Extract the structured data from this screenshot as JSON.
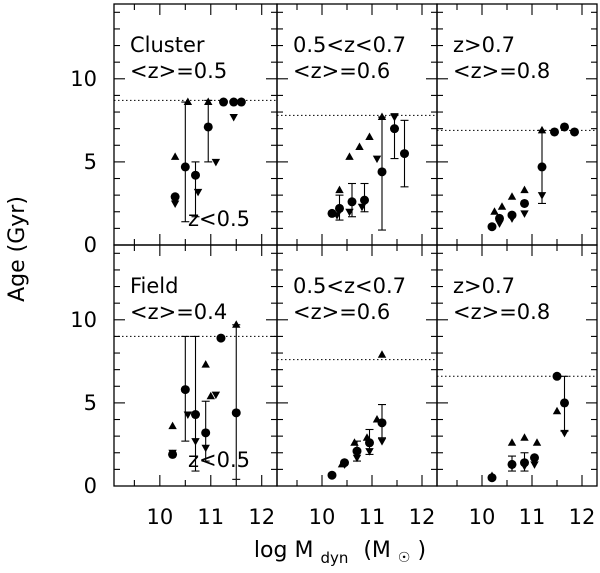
{
  "chart_data": {
    "type": "scatter",
    "xlabel_main": "log M",
    "xlabel_sub": "dyn",
    "xlabel_unit_open": "(M",
    "xlabel_unit_close": ")",
    "ylabel": "Age (Gyr)",
    "xlim": [
      9.1,
      12.3
    ],
    "ylim": [
      0,
      14.5
    ],
    "x_ticklabels": [
      "10",
      "11",
      "12"
    ],
    "y_ticklabels": [
      "0",
      "5",
      "10"
    ],
    "panels": [
      {
        "row": 0,
        "col": 0,
        "label": [
          "Cluster",
          "<z>=0.5"
        ],
        "note": "z<0.5",
        "ref_age": 8.7,
        "circles": [
          {
            "x": 10.3,
            "y": 2.9
          },
          {
            "x": 10.5,
            "y": 4.7,
            "lo": 1.4,
            "hi": 8.6
          },
          {
            "x": 10.7,
            "y": 4.2,
            "lo": 1.7,
            "hi": 5.0
          },
          {
            "x": 10.95,
            "y": 7.1,
            "lo": 5.0,
            "hi": 8.7
          },
          {
            "x": 11.25,
            "y": 8.6
          },
          {
            "x": 11.45,
            "y": 8.6
          },
          {
            "x": 11.6,
            "y": 8.6
          }
        ],
        "up": [
          {
            "x": 10.3,
            "y": 5.3
          },
          {
            "x": 10.55,
            "y": 8.6
          },
          {
            "x": 10.95,
            "y": 8.6
          }
        ],
        "down": [
          {
            "x": 10.3,
            "y": 2.5
          },
          {
            "x": 10.75,
            "y": 3.2
          },
          {
            "x": 11.1,
            "y": 5.0
          },
          {
            "x": 11.45,
            "y": 7.7
          }
        ]
      },
      {
        "row": 0,
        "col": 1,
        "label": [
          "0.5<z<0.7",
          "<z>=0.6"
        ],
        "note": "",
        "ref_age": 7.8,
        "circles": [
          {
            "x": 10.2,
            "y": 1.9
          },
          {
            "x": 10.35,
            "y": 2.2,
            "lo": 1.5,
            "hi": 3.0
          },
          {
            "x": 10.6,
            "y": 2.6,
            "lo": 1.7,
            "hi": 3.7
          },
          {
            "x": 10.85,
            "y": 2.7,
            "lo": 2.0,
            "hi": 3.7
          },
          {
            "x": 11.2,
            "y": 4.4,
            "lo": 0.9,
            "hi": 7.7
          },
          {
            "x": 11.45,
            "y": 7.0,
            "lo": 5.2,
            "hi": 7.9
          },
          {
            "x": 11.65,
            "y": 5.5,
            "lo": 3.5,
            "hi": 7.5
          }
        ],
        "up": [
          {
            "x": 10.35,
            "y": 3.3
          },
          {
            "x": 10.55,
            "y": 5.3
          },
          {
            "x": 10.75,
            "y": 5.9
          },
          {
            "x": 10.95,
            "y": 6.5
          },
          {
            "x": 11.2,
            "y": 7.7
          }
        ],
        "down": [
          {
            "x": 10.3,
            "y": 1.8
          },
          {
            "x": 10.55,
            "y": 2.0
          },
          {
            "x": 10.8,
            "y": 2.3
          },
          {
            "x": 11.1,
            "y": 5.2
          },
          {
            "x": 11.45,
            "y": 7.7
          }
        ]
      },
      {
        "row": 0,
        "col": 2,
        "label": [
          "z>0.7",
          "<z>=0.8"
        ],
        "note": "",
        "ref_age": 6.9,
        "circles": [
          {
            "x": 10.2,
            "y": 1.1
          },
          {
            "x": 10.35,
            "y": 1.6
          },
          {
            "x": 10.6,
            "y": 1.8
          },
          {
            "x": 10.85,
            "y": 2.5
          },
          {
            "x": 11.2,
            "y": 4.7,
            "lo": 2.5,
            "hi": 6.9
          },
          {
            "x": 11.45,
            "y": 6.8
          },
          {
            "x": 11.65,
            "y": 7.1
          },
          {
            "x": 11.85,
            "y": 6.8
          }
        ],
        "up": [
          {
            "x": 10.25,
            "y": 2.0
          },
          {
            "x": 10.4,
            "y": 2.3
          },
          {
            "x": 10.6,
            "y": 2.9
          },
          {
            "x": 10.85,
            "y": 3.3
          },
          {
            "x": 11.2,
            "y": 6.9
          }
        ],
        "down": [
          {
            "x": 10.35,
            "y": 1.3
          },
          {
            "x": 10.6,
            "y": 1.6
          },
          {
            "x": 10.85,
            "y": 1.9
          },
          {
            "x": 11.2,
            "y": 3.0
          }
        ]
      },
      {
        "row": 1,
        "col": 0,
        "label": [
          "Field",
          "<z>=0.4"
        ],
        "note": "z<0.5",
        "ref_age": 9.0,
        "circles": [
          {
            "x": 10.25,
            "y": 1.9
          },
          {
            "x": 10.5,
            "y": 5.8,
            "lo": 2.7,
            "hi": 9.0
          },
          {
            "x": 10.7,
            "y": 4.3,
            "lo": 0.9,
            "hi": 9.0
          },
          {
            "x": 10.9,
            "y": 3.2,
            "lo": 1.5,
            "hi": 5.1
          },
          {
            "x": 11.2,
            "y": 8.9
          },
          {
            "x": 11.5,
            "y": 4.4,
            "lo": 0.4,
            "hi": 9.7
          }
        ],
        "up": [
          {
            "x": 10.25,
            "y": 3.6
          },
          {
            "x": 10.9,
            "y": 7.3
          },
          {
            "x": 11.0,
            "y": 5.4
          },
          {
            "x": 11.5,
            "y": 9.7
          }
        ],
        "down": [
          {
            "x": 10.25,
            "y": 2.0
          },
          {
            "x": 10.55,
            "y": 4.3
          },
          {
            "x": 10.7,
            "y": 2.7
          },
          {
            "x": 10.9,
            "y": 2.3
          },
          {
            "x": 11.1,
            "y": 5.5
          }
        ]
      },
      {
        "row": 1,
        "col": 1,
        "label": [
          "0.5<z<0.7",
          "<z>=0.6"
        ],
        "note": "",
        "ref_age": 7.6,
        "circles": [
          {
            "x": 10.2,
            "y": 0.65
          },
          {
            "x": 10.45,
            "y": 1.4
          },
          {
            "x": 10.7,
            "y": 2.1,
            "lo": 1.5,
            "hi": 2.7
          },
          {
            "x": 10.95,
            "y": 2.6,
            "lo": 1.9,
            "hi": 3.4
          },
          {
            "x": 11.2,
            "y": 3.8,
            "lo": 2.9,
            "hi": 4.9
          }
        ],
        "up": [
          {
            "x": 10.4,
            "y": 1.3
          },
          {
            "x": 10.65,
            "y": 2.6
          },
          {
            "x": 10.9,
            "y": 2.9
          },
          {
            "x": 11.1,
            "y": 4.0
          },
          {
            "x": 11.2,
            "y": 7.9
          }
        ],
        "down": [
          {
            "x": 10.45,
            "y": 1.3
          },
          {
            "x": 10.7,
            "y": 1.7
          },
          {
            "x": 10.95,
            "y": 2.1
          },
          {
            "x": 11.2,
            "y": 2.7
          }
        ]
      },
      {
        "row": 1,
        "col": 2,
        "label": [
          "z>0.7",
          "<z>=0.8"
        ],
        "note": "",
        "ref_age": 6.6,
        "circles": [
          {
            "x": 10.2,
            "y": 0.5
          },
          {
            "x": 10.6,
            "y": 1.3,
            "lo": 0.9,
            "hi": 1.8
          },
          {
            "x": 10.85,
            "y": 1.4,
            "lo": 0.9,
            "hi": 2.0
          },
          {
            "x": 11.05,
            "y": 1.7
          },
          {
            "x": 11.5,
            "y": 6.6
          },
          {
            "x": 11.65,
            "y": 5.0,
            "lo": 3.3,
            "hi": 6.6
          }
        ],
        "up": [
          {
            "x": 10.2,
            "y": 0.6
          },
          {
            "x": 10.6,
            "y": 2.6
          },
          {
            "x": 10.85,
            "y": 2.9
          },
          {
            "x": 11.1,
            "y": 2.6
          },
          {
            "x": 11.5,
            "y": 4.5
          }
        ],
        "down": [
          {
            "x": 10.6,
            "y": 1.2
          },
          {
            "x": 10.85,
            "y": 1.2
          },
          {
            "x": 11.05,
            "y": 1.3
          },
          {
            "x": 11.65,
            "y": 3.2
          }
        ]
      }
    ]
  }
}
